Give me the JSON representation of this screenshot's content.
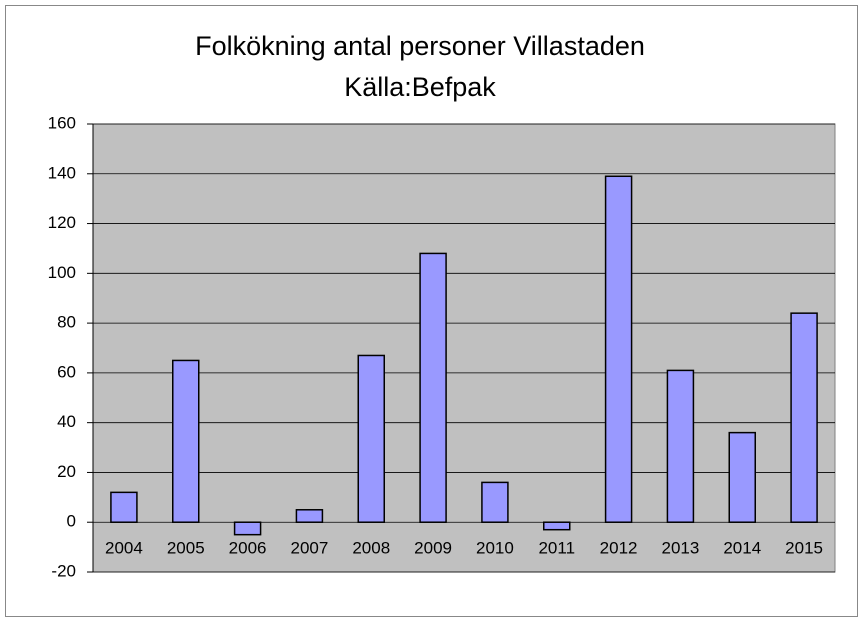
{
  "chart_data": {
    "type": "bar",
    "title": "Folkökning antal personer Villastaden",
    "subtitle": "Källa:Befpak",
    "categories": [
      "2004",
      "2005",
      "2006",
      "2007",
      "2008",
      "2009",
      "2010",
      "2011",
      "2012",
      "2013",
      "2014",
      "2015"
    ],
    "values": [
      12,
      65,
      -5,
      5,
      67,
      108,
      16,
      -3,
      139,
      61,
      36,
      84
    ],
    "color": "#9999ff",
    "ylim": [
      -20,
      160
    ],
    "yticks": [
      -20,
      0,
      20,
      40,
      60,
      80,
      100,
      120,
      140,
      160
    ],
    "grid": true
  }
}
